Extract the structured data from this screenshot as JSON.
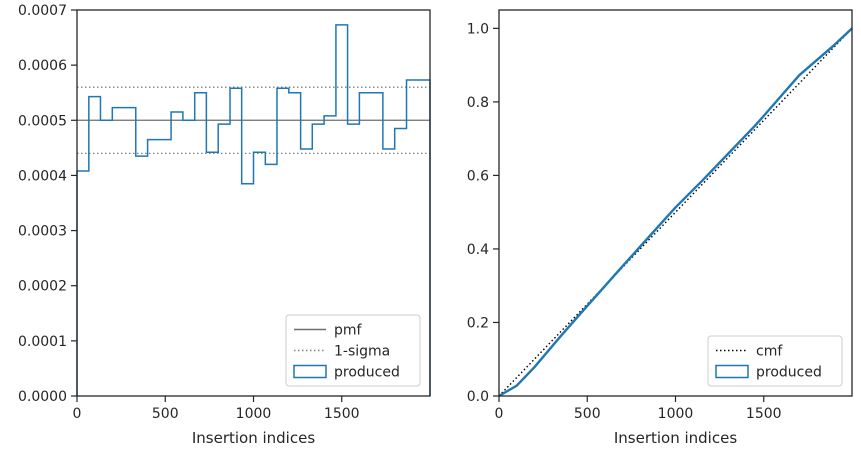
{
  "colors": {
    "produced": "#1f77b4",
    "pmf": "#6e6e6e",
    "sigma": "#808080",
    "cmf": "#000000",
    "axes": "#262626"
  },
  "chart_data": [
    {
      "type": "line",
      "subtype": "step-histogram",
      "xlabel": "Insertion indices",
      "ylabel": "",
      "xlim": [
        0,
        2000
      ],
      "ylim": [
        0,
        0.0007
      ],
      "xticks": [
        0,
        500,
        1000,
        1500
      ],
      "xtick_labels": [
        "0",
        "500",
        "1000",
        "1500"
      ],
      "yticks": [
        0,
        0.0001,
        0.0002,
        0.0003,
        0.0004,
        0.0005,
        0.0006,
        0.0007
      ],
      "ytick_labels": [
        "0.0000",
        "0.0001",
        "0.0002",
        "0.0003",
        "0.0004",
        "0.0005",
        "0.0006",
        "0.0007"
      ],
      "grid": false,
      "legend": {
        "placement": "lower-right",
        "entries": [
          {
            "label": "pmf",
            "style": "solid-line"
          },
          {
            "label": "1-sigma",
            "style": "dotted-line"
          },
          {
            "label": "produced",
            "style": "patch"
          }
        ]
      },
      "reference_lines": {
        "pmf": 0.0005,
        "sigma_low": 0.00044,
        "sigma_high": 0.00056
      },
      "bin_edges": [
        0,
        67,
        133,
        200,
        267,
        333,
        400,
        467,
        533,
        600,
        667,
        733,
        800,
        867,
        933,
        1000,
        1067,
        1133,
        1200,
        1267,
        1333,
        1400,
        1467,
        1533,
        1600,
        1667,
        1733,
        1800,
        1867,
        1933,
        2000
      ],
      "series": [
        {
          "name": "produced",
          "values": [
            0.000408,
            0.000543,
            0.0005,
            0.000523,
            0.000523,
            0.000435,
            0.000465,
            0.000465,
            0.000515,
            0.0005,
            0.00055,
            0.000442,
            0.000493,
            0.000558,
            0.000385,
            0.000442,
            0.00042,
            0.000558,
            0.00055,
            0.000448,
            0.000493,
            0.000508,
            0.000673,
            0.000493,
            0.00055,
            0.00055,
            0.000448,
            0.000485,
            0.000573,
            0.000573
          ]
        }
      ]
    },
    {
      "type": "line",
      "subtype": "step-cumulative",
      "xlabel": "Insertion indices",
      "ylabel": "",
      "xlim": [
        0,
        2000
      ],
      "ylim": [
        0,
        1.05
      ],
      "xticks": [
        0,
        500,
        1000,
        1500
      ],
      "xtick_labels": [
        "0",
        "500",
        "1000",
        "1500"
      ],
      "yticks": [
        0,
        0.2,
        0.4,
        0.6,
        0.8,
        1.0
      ],
      "ytick_labels": [
        "0.0",
        "0.2",
        "0.4",
        "0.6",
        "0.8",
        "1.0"
      ],
      "grid": false,
      "legend": {
        "placement": "lower-right",
        "entries": [
          {
            "label": "cmf",
            "style": "dotted-line"
          },
          {
            "label": "produced",
            "style": "patch"
          }
        ]
      },
      "series": [
        {
          "name": "cmf",
          "x": [
            0,
            2000
          ],
          "y": [
            0,
            1.0
          ]
        },
        {
          "name": "produced",
          "x": [
            0,
            100,
            200,
            350,
            500,
            700,
            900,
            1000,
            1150,
            1300,
            1450,
            1500,
            1700,
            1900,
            2000
          ],
          "y": [
            0,
            0.028,
            0.078,
            0.163,
            0.245,
            0.353,
            0.46,
            0.513,
            0.585,
            0.66,
            0.735,
            0.762,
            0.872,
            0.955,
            1.0
          ]
        }
      ]
    }
  ]
}
